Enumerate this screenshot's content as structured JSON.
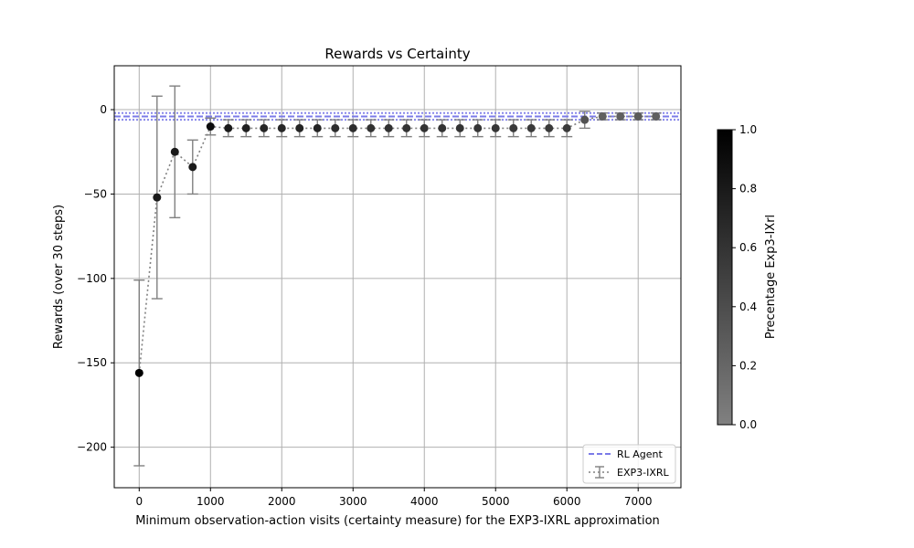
{
  "chart_data": {
    "type": "scatter",
    "title": "Rewards vs Certainty",
    "xlabel": "Minimum observation-action visits (certainty measure) for the EXP3-IXRL approximation",
    "ylabel": "Rewards (over 30 steps)",
    "xlim": [
      -350,
      7600
    ],
    "ylim": [
      -224,
      26
    ],
    "xticks": [
      0,
      1000,
      2000,
      3000,
      4000,
      5000,
      6000,
      7000
    ],
    "yticks": [
      0,
      -50,
      -100,
      -150,
      -200
    ],
    "ytick_labels": [
      "0",
      "−50",
      "−100",
      "−150",
      "−200"
    ],
    "grid": true,
    "legend_position": "lower-right",
    "legend": [
      "RL Agent",
      "EXP3-IXRL"
    ],
    "rl_agent": {
      "name": "RL Agent",
      "color": "#7b7be8",
      "mean": -4,
      "band": [
        -6,
        -2
      ]
    },
    "series": [
      {
        "name": "EXP3-IXRL",
        "line_color": "#808080",
        "x": [
          0,
          250,
          500,
          750,
          1000,
          1250,
          1500,
          1750,
          2000,
          2250,
          2500,
          2750,
          3000,
          3250,
          3500,
          3750,
          4000,
          4250,
          4500,
          4750,
          5000,
          5250,
          5500,
          5750,
          6000,
          6250,
          6500,
          6750,
          7000,
          7250
        ],
        "y": [
          -156,
          -52,
          -25,
          -34,
          -10,
          -11,
          -11,
          -11,
          -11,
          -11,
          -11,
          -11,
          -11,
          -11,
          -11,
          -11,
          -11,
          -11,
          -11,
          -11,
          -11,
          -11,
          -11,
          -11,
          -11,
          -6,
          -4,
          -4,
          -4,
          -4
        ],
        "yerr": [
          55,
          60,
          39,
          16,
          5,
          5,
          5,
          5,
          5,
          5,
          5,
          5,
          5,
          5,
          5,
          5,
          5,
          5,
          5,
          5,
          5,
          5,
          5,
          5,
          5,
          5,
          2,
          2,
          2,
          2
        ],
        "percentage": [
          1.0,
          0.8,
          0.8,
          0.8,
          0.9,
          0.8,
          0.75,
          0.7,
          0.7,
          0.72,
          0.72,
          0.65,
          0.65,
          0.62,
          0.62,
          0.6,
          0.6,
          0.6,
          0.6,
          0.58,
          0.58,
          0.55,
          0.55,
          0.55,
          0.55,
          0.35,
          0.25,
          0.25,
          0.3,
          0.25
        ]
      }
    ],
    "colorbar": {
      "label": "Precentage Exp3-IXrl",
      "range": [
        0.0,
        1.0
      ],
      "ticks": [
        0.0,
        0.2,
        0.4,
        0.6,
        0.8,
        1.0
      ],
      "tick_labels": [
        "0.0",
        "0.2",
        "0.4",
        "0.6",
        "0.8",
        "1.0"
      ],
      "color_low": "#808080",
      "color_high": "#000000"
    }
  }
}
